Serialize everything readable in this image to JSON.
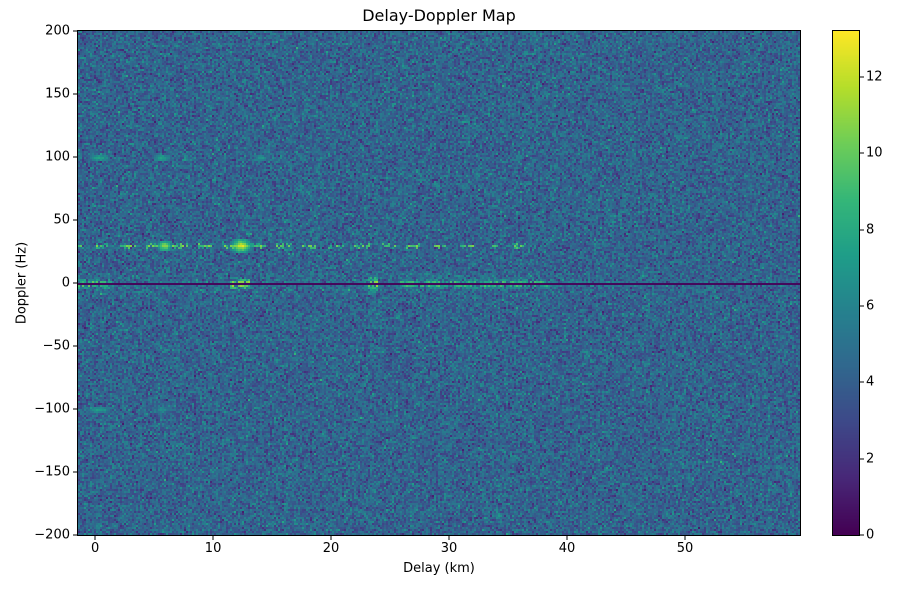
{
  "figure": {
    "background": "#ffffff",
    "text_color": "#000000"
  },
  "chart_data": {
    "type": "heatmap",
    "title": "Delay-Doppler Map",
    "xlabel": "Delay (km)",
    "ylabel": "Doppler (Hz)",
    "xlim": [
      -1.45,
      59.75
    ],
    "ylim": [
      -200,
      200
    ],
    "clim": [
      0,
      13.2
    ],
    "colormap": "viridis",
    "colormap_stops": [
      "#440154",
      "#482878",
      "#3e4989",
      "#31688e",
      "#26828e",
      "#1f9e89",
      "#35b779",
      "#6ece58",
      "#b5de2b",
      "#fde725"
    ],
    "xticks": {
      "values": [
        0,
        10,
        20,
        30,
        40,
        50
      ],
      "labels": [
        "0",
        "10",
        "20",
        "30",
        "40",
        "50"
      ]
    },
    "yticks": {
      "values": [
        200,
        150,
        100,
        50,
        0,
        -50,
        -100,
        -150,
        -200
      ],
      "labels": [
        "200",
        "150",
        "100",
        "50",
        "0",
        "−50",
        "−100",
        "−150",
        "−200"
      ]
    },
    "cticks": {
      "values": [
        0,
        2,
        4,
        6,
        8,
        10,
        12
      ],
      "labels": [
        "0",
        "2",
        "4",
        "6",
        "8",
        "10",
        "12"
      ]
    },
    "grid": {
      "cols": 361,
      "rows": 252
    },
    "noise": {
      "mean": 4.2,
      "std": 1.05
    },
    "features": {
      "zero_line": {
        "doppler": 0,
        "value": 0.3
      },
      "zero_band_segments": [
        {
          "d0": -1.45,
          "d1": 1.3,
          "peak": 13.0,
          "spread_hz": 3.5,
          "prob": 0.95
        },
        {
          "d0": 1.3,
          "d1": 11.6,
          "peak": 8.2,
          "spread_hz": 2.2,
          "prob": 0.7
        },
        {
          "d0": 11.6,
          "d1": 13.1,
          "peak": 13.2,
          "spread_hz": 4.5,
          "prob": 0.95
        },
        {
          "d0": 13.1,
          "d1": 22.9,
          "peak": 8.5,
          "spread_hz": 2.2,
          "prob": 0.7
        },
        {
          "d0": 23.2,
          "d1": 23.9,
          "peak": 13.2,
          "spread_hz": 7.0,
          "prob": 1.0
        },
        {
          "d0": 24.2,
          "d1": 26.0,
          "peak": 8.5,
          "spread_hz": 2.2,
          "prob": 0.7
        },
        {
          "d0": 26.0,
          "d1": 38.5,
          "peak": 11.8,
          "spread_hz": 3.2,
          "prob": 0.9
        },
        {
          "d0": 38.5,
          "d1": 48.0,
          "peak": 9.2,
          "spread_hz": 2.2,
          "prob": 0.65
        },
        {
          "d0": 48.0,
          "d1": 59.75,
          "peak": 6.8,
          "spread_hz": 1.8,
          "prob": 0.5
        }
      ],
      "doppler_rows": [
        {
          "doppler": 30,
          "d0": -1.45,
          "d1": 36.5,
          "peak": 10.8,
          "prob": 0.6,
          "spread_hz": 2.2,
          "dash_km": 1.3,
          "blobs": [
            {
              "d": 12.3,
              "peak": 13.2,
              "spread_hz": 4.5,
              "width_km": 0.8
            },
            {
              "d": 5.8,
              "peak": 11.5,
              "spread_hz": 2.5,
              "width_km": 0.6
            }
          ]
        },
        {
          "doppler": 100,
          "d0": -1.45,
          "d1": 20,
          "peak": 6.6,
          "prob": 0.5,
          "spread_hz": 1.2,
          "dash_km": 1.0,
          "blobs": [
            {
              "d": 0.3,
              "peak": 8.0,
              "spread_hz": 1.2,
              "width_km": 1.0
            },
            {
              "d": 5.6,
              "peak": 8.2,
              "spread_hz": 1.2,
              "width_km": 0.8
            },
            {
              "d": 14.0,
              "peak": 7.5,
              "spread_hz": 1.0,
              "width_km": 0.5
            }
          ]
        },
        {
          "doppler": -100,
          "d0": -1.45,
          "d1": 16,
          "peak": 6.2,
          "prob": 0.45,
          "spread_hz": 1.2,
          "dash_km": 1.0,
          "blobs": [
            {
              "d": 0.3,
              "peak": 7.8,
              "spread_hz": 1.2,
              "width_km": 1.0
            },
            {
              "d": 5.6,
              "peak": 7.2,
              "spread_hz": 1.0,
              "width_km": 0.6
            }
          ]
        }
      ],
      "haze": {
        "doppler_halfwidth_hz": 8,
        "d1": 42,
        "boost": 0.5
      }
    }
  }
}
